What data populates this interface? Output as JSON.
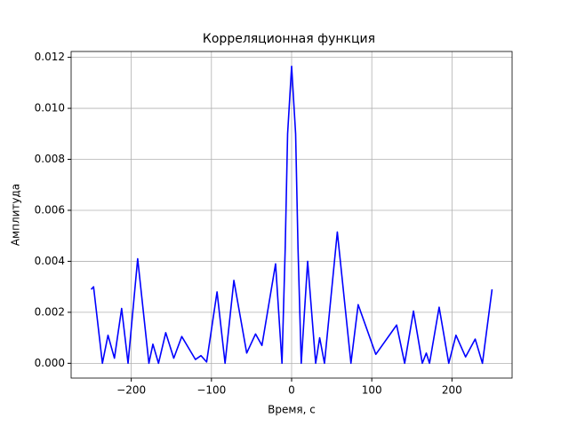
{
  "chart_data": {
    "type": "line",
    "title": "Корреляционная функция",
    "xlabel": "Время, с",
    "ylabel": "Амплитуда",
    "x": [
      -250,
      -247,
      -236,
      -229,
      -221,
      -212,
      -204,
      -192,
      -178,
      -173,
      -166,
      -157,
      -147,
      -137,
      -120,
      -113,
      -106,
      -93,
      -83,
      -72,
      -56,
      -45,
      -37,
      -20,
      -12,
      -8,
      -5,
      0,
      5,
      8,
      12,
      20,
      30,
      35,
      41,
      57,
      74,
      83,
      105,
      131,
      141,
      152,
      163,
      168,
      172,
      184,
      196,
      205,
      217,
      229,
      238,
      250
    ],
    "series": [
      {
        "name": "Корреляционная функция",
        "color": "#0000ff",
        "values": [
          0.0029,
          0.003,
          0,
          0.0011,
          0.0002,
          0.00215,
          0,
          0.0041,
          0,
          0.00075,
          0,
          0.0012,
          0.0002,
          0.00105,
          0.00015,
          0.0003,
          5e-05,
          0.0028,
          0,
          0.00325,
          0.0004,
          0.00115,
          0.0007,
          0.0039,
          0,
          0.0045,
          0.009,
          0.01165,
          0.009,
          0.0045,
          0,
          0.004,
          0,
          0.001,
          0,
          0.00515,
          0,
          0.0023,
          0.00035,
          0.0015,
          0,
          0.00205,
          0,
          0.0004,
          0,
          0.0022,
          0,
          0.0011,
          0.00025,
          0.00095,
          0,
          0.0029
        ]
      }
    ],
    "xlim": [
      -275,
      275
    ],
    "ylim": [
      -0.00058,
      0.01223
    ],
    "xticks": [
      {
        "value": -200,
        "label": "−200"
      },
      {
        "value": -100,
        "label": "−100"
      },
      0,
      100,
      200
    ],
    "yticks": [
      {
        "value": 0,
        "label": "0.000"
      },
      {
        "value": 0.002,
        "label": "0.002"
      },
      {
        "value": 0.004,
        "label": "0.004"
      },
      {
        "value": 0.006,
        "label": "0.006"
      },
      {
        "value": 0.008,
        "label": "0.008"
      },
      {
        "value": 0.01,
        "label": "0.010"
      },
      {
        "value": 0.012,
        "label": "0.012"
      }
    ],
    "grid": true
  }
}
